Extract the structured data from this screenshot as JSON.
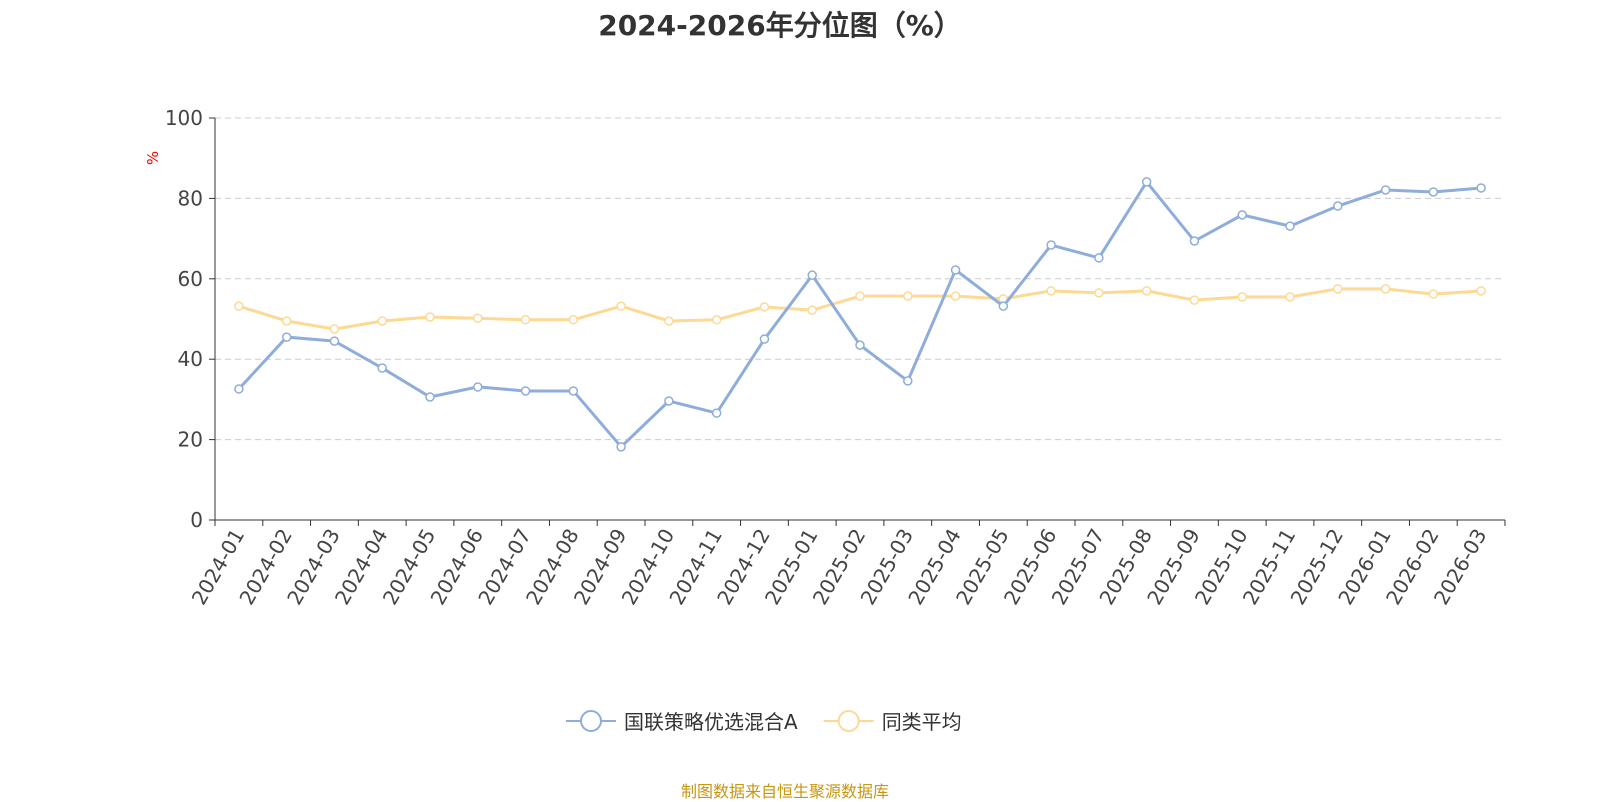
{
  "chart_data": {
    "type": "line",
    "title": "2024-2026年分位图（%）",
    "ylabel": "%",
    "xlabel": "",
    "ylim": [
      0,
      100
    ],
    "yticks": [
      0,
      20,
      40,
      60,
      80,
      100
    ],
    "grid": "horizontal dashed",
    "legend_position": "bottom-center",
    "categories": [
      "2024-01",
      "2024-02",
      "2024-03",
      "2024-04",
      "2024-05",
      "2024-06",
      "2024-07",
      "2024-08",
      "2024-09",
      "2024-10",
      "2024-11",
      "2024-12",
      "2025-01",
      "2025-02",
      "2025-03",
      "2025-04",
      "2025-05",
      "2025-06",
      "2025-07",
      "2025-08",
      "2025-09",
      "2025-10",
      "2025-11",
      "2025-12",
      "2026-01",
      "2026-02",
      "2026-03"
    ],
    "series": [
      {
        "name": "国联策略优选混合A",
        "color": "#8eaddb",
        "values": [
          32.6,
          45.5,
          44.5,
          37.8,
          30.6,
          33.1,
          32.1,
          32.1,
          18.2,
          29.6,
          26.6,
          45.0,
          60.9,
          43.5,
          34.6,
          62.2,
          53.2,
          68.4,
          65.2,
          84.1,
          69.4,
          75.9,
          73.1,
          78.1,
          82.1,
          81.6,
          82.6
        ]
      },
      {
        "name": "同类平均",
        "color": "#fdd993",
        "values": [
          53.2,
          49.5,
          47.5,
          49.5,
          50.5,
          50.2,
          49.8,
          49.8,
          53.2,
          49.5,
          49.8,
          53.0,
          52.2,
          55.7,
          55.7,
          55.7,
          55.0,
          57.0,
          56.5,
          57.0,
          54.7,
          55.5,
          55.5,
          57.5,
          57.5,
          56.2,
          57.0
        ]
      }
    ]
  },
  "source": "制图数据来自恒生聚源数据库"
}
